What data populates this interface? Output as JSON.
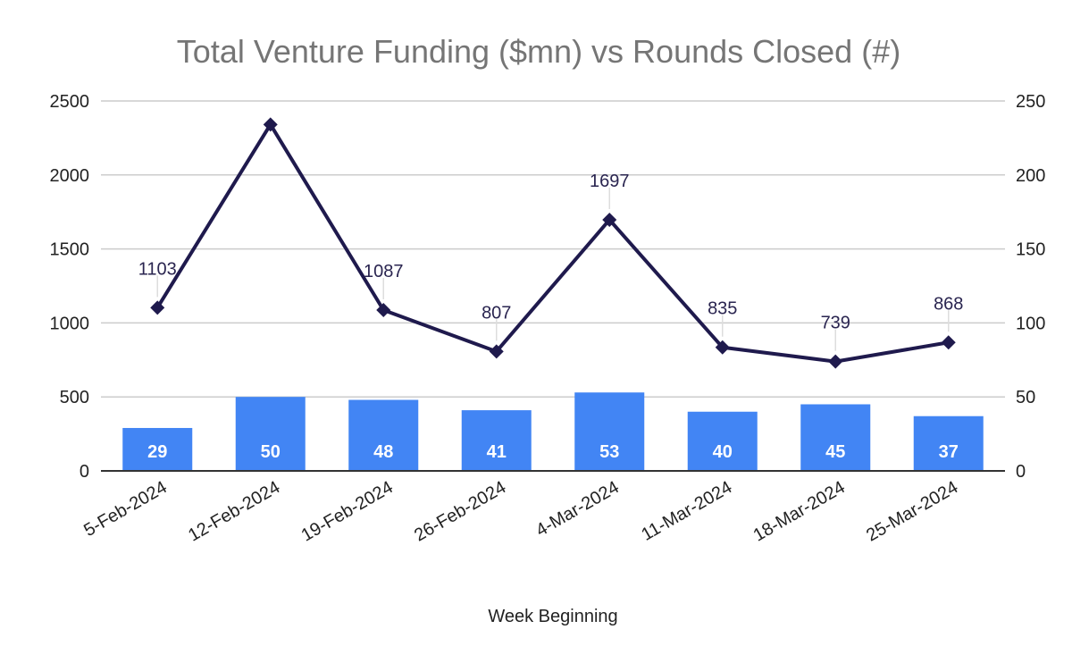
{
  "chart_data": {
    "type": "bar",
    "title": "Total Venture Funding ($mn) vs Rounds Closed (#)",
    "xlabel": "Week Beginning",
    "categories": [
      "5-Feb-2024",
      "12-Feb-2024",
      "19-Feb-2024",
      "26-Feb-2024",
      "4-Mar-2024",
      "11-Mar-2024",
      "18-Mar-2024",
      "25-Mar-2024"
    ],
    "y_left": {
      "ylim": [
        0,
        2500
      ],
      "ticks": [
        "0",
        "500",
        "1000",
        "1500",
        "2000",
        "2500"
      ]
    },
    "y_right": {
      "ylim": [
        0,
        250
      ],
      "ticks": [
        "0",
        "50",
        "100",
        "150",
        "200",
        "250"
      ]
    },
    "grid": true,
    "legend": "none",
    "series": [
      {
        "type": "line",
        "axis": "left",
        "color": "#1f1a4d",
        "marker": "diamond",
        "values": [
          1103,
          2341,
          1087,
          807,
          1697,
          835,
          739,
          868
        ],
        "labels": [
          "1103",
          "",
          "1087",
          "807",
          "1697",
          "835",
          "739",
          "868"
        ]
      },
      {
        "type": "bar",
        "axis": "right",
        "color": "#4285f4",
        "values": [
          29,
          50,
          48,
          41,
          53,
          40,
          45,
          37
        ],
        "labels": [
          "29",
          "50",
          "48",
          "41",
          "53",
          "40",
          "45",
          "37"
        ]
      }
    ]
  }
}
